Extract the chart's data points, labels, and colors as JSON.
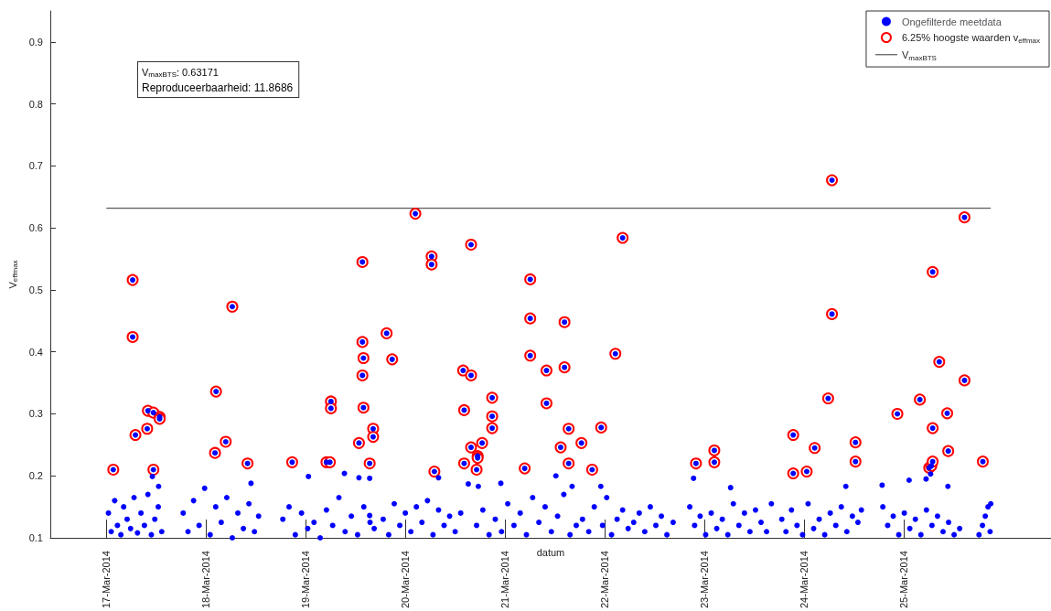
{
  "chart_data": {
    "type": "scatter",
    "xlabel": "datum",
    "ylabel": "V$_{effmax}$",
    "xlim": [
      "2014-03-16T10:30",
      "2014-03-26T11:30"
    ],
    "xticks": [
      {
        "value": "2014-03-17",
        "label": "17-Mar-2014"
      },
      {
        "value": "2014-03-18",
        "label": "18-Mar-2014"
      },
      {
        "value": "2014-03-19",
        "label": "19-Mar-2014"
      },
      {
        "value": "2014-03-20",
        "label": "20-Mar-2014"
      },
      {
        "value": "2014-03-21",
        "label": "21-Mar-2014"
      },
      {
        "value": "2014-03-22",
        "label": "22-Mar-2014"
      },
      {
        "value": "2014-03-23",
        "label": "23-Mar-2014"
      },
      {
        "value": "2014-03-24",
        "label": "24-Mar-2014"
      },
      {
        "value": "2014-03-25",
        "label": "25-Mar-2014"
      }
    ],
    "ylim": [
      0.1,
      0.95
    ],
    "yticks": [
      0.1,
      0.2,
      0.3,
      0.4,
      0.5,
      0.6,
      0.7,
      0.8,
      0.9
    ],
    "grid": false,
    "legend": "top right",
    "annotations": [
      "V$_{maxBTS}$: 0.63171",
      "Reproduceerbaarheid: 11.8686"
    ],
    "series": [
      {
        "name": "Ongefilterde meetdata",
        "marker": "circle",
        "color": "#0000ff",
        "x": [
          "2014-03-17T00:30",
          "2014-03-17T01:10",
          "2014-03-17T02:00",
          "2014-03-17T02:40",
          "2014-03-17T03:30",
          "2014-03-17T04:10",
          "2014-03-17T05:00",
          "2014-03-17T05:50",
          "2014-03-17T06:40",
          "2014-03-17T07:30",
          "2014-03-17T08:20",
          "2014-03-17T09:10",
          "2014-03-17T10:00",
          "2014-03-17T10:50",
          "2014-03-17T11:40",
          "2014-03-17T12:30",
          "2014-03-17T13:20",
          "2014-03-17T18:30",
          "2014-03-17T19:40",
          "2014-03-17T21:00",
          "2014-03-17T22:20",
          "2014-03-17T23:40",
          "2014-03-18T01:00",
          "2014-03-18T02:20",
          "2014-03-18T03:40",
          "2014-03-18T05:00",
          "2014-03-18T06:20",
          "2014-03-18T07:40",
          "2014-03-18T09:00",
          "2014-03-18T10:20",
          "2014-03-18T11:40",
          "2014-03-18T12:40",
          "2014-03-18T18:30",
          "2014-03-18T20:00",
          "2014-03-18T21:30",
          "2014-03-18T23:00",
          "2014-03-19T00:30",
          "2014-03-19T02:00",
          "2014-03-19T03:30",
          "2014-03-19T05:00",
          "2014-03-19T06:30",
          "2014-03-19T08:00",
          "2014-03-19T09:30",
          "2014-03-19T11:00",
          "2014-03-19T12:30",
          "2014-03-19T14:00",
          "2014-03-19T15:30",
          "2014-03-19T16:30",
          "2014-03-19T18:40",
          "2014-03-19T20:00",
          "2014-03-19T21:20",
          "2014-03-19T22:40",
          "2014-03-20T00:00",
          "2014-03-20T01:20",
          "2014-03-20T02:40",
          "2014-03-20T04:00",
          "2014-03-20T05:20",
          "2014-03-20T06:40",
          "2014-03-20T08:00",
          "2014-03-20T09:20",
          "2014-03-20T10:40",
          "2014-03-20T12:00",
          "2014-03-20T13:20",
          "2014-03-20T17:10",
          "2014-03-20T18:40",
          "2014-03-20T20:10",
          "2014-03-20T21:40",
          "2014-03-20T23:10",
          "2014-03-21T00:40",
          "2014-03-21T02:10",
          "2014-03-21T03:40",
          "2014-03-21T05:10",
          "2014-03-21T06:40",
          "2014-03-21T08:10",
          "2014-03-21T09:40",
          "2014-03-21T11:10",
          "2014-03-21T12:40",
          "2014-03-21T14:10",
          "2014-03-21T15:40",
          "2014-03-21T17:10",
          "2014-03-21T18:40",
          "2014-03-21T20:10",
          "2014-03-21T21:30",
          "2014-03-21T23:30",
          "2014-03-22T00:30",
          "2014-03-22T01:40",
          "2014-03-22T03:00",
          "2014-03-22T04:20",
          "2014-03-22T05:40",
          "2014-03-22T07:00",
          "2014-03-22T08:20",
          "2014-03-22T09:40",
          "2014-03-22T11:00",
          "2014-03-22T12:20",
          "2014-03-22T13:40",
          "2014-03-22T15:00",
          "2014-03-22T16:30",
          "2014-03-22T20:30",
          "2014-03-22T21:40",
          "2014-03-22T23:00",
          "2014-03-23T00:20",
          "2014-03-23T01:40",
          "2014-03-23T03:00",
          "2014-03-23T04:20",
          "2014-03-23T05:40",
          "2014-03-23T07:00",
          "2014-03-23T08:20",
          "2014-03-23T09:40",
          "2014-03-23T11:00",
          "2014-03-23T12:20",
          "2014-03-23T13:40",
          "2014-03-23T15:00",
          "2014-03-23T16:10",
          "2014-03-23T18:40",
          "2014-03-23T19:40",
          "2014-03-23T21:00",
          "2014-03-23T22:20",
          "2014-03-23T23:40",
          "2014-03-24T01:00",
          "2014-03-24T02:20",
          "2014-03-24T03:40",
          "2014-03-24T05:00",
          "2014-03-24T06:20",
          "2014-03-24T07:40",
          "2014-03-24T09:00",
          "2014-03-24T10:20",
          "2014-03-24T11:40",
          "2014-03-24T13:00",
          "2014-03-24T13:50",
          "2014-03-24T19:00",
          "2014-03-24T20:10",
          "2014-03-24T21:30",
          "2014-03-24T22:50",
          "2014-03-25T00:10",
          "2014-03-25T01:30",
          "2014-03-25T02:50",
          "2014-03-25T04:10",
          "2014-03-25T05:30",
          "2014-03-25T06:50",
          "2014-03-25T08:10",
          "2014-03-25T09:30",
          "2014-03-25T10:50",
          "2014-03-25T12:10",
          "2014-03-25T13:30",
          "2014-03-25T18:10",
          "2014-03-25T19:00",
          "2014-03-25T19:40",
          "2014-03-25T20:20",
          "2014-03-25T21:00",
          "2014-03-25T20:50",
          "2014-03-17T11:05",
          "2014-03-17T12:35",
          "2014-03-18T10:50",
          "2014-03-19T00:40",
          "2014-03-19T09:20",
          "2014-03-19T12:50",
          "2014-03-19T15:25",
          "2014-03-19T15:25",
          "2014-03-20T08:00",
          "2014-03-20T15:10",
          "2014-03-20T17:35",
          "2014-03-20T23:00",
          "2014-03-21T12:15",
          "2014-03-21T16:10",
          "2014-03-21T23:05",
          "2014-03-22T21:25",
          "2014-03-23T06:20",
          "2014-03-24T10:05",
          "2014-03-24T18:50",
          "2014-03-25T01:20",
          "2014-03-25T05:25",
          "2014-03-25T06:30",
          "2014-03-25T10:40",
          "2014-03-17T01:40",
          "2014-03-17T06:20",
          "2014-03-17T06:20",
          "2014-03-17T07:00",
          "2014-03-17T10:00",
          "2014-03-17T09:50",
          "2014-03-17T11:20",
          "2014-03-17T12:50",
          "2014-03-17T12:50",
          "2014-03-17T11:20",
          "2014-03-18T02:10",
          "2014-03-18T02:25",
          "2014-03-18T04:45",
          "2014-03-18T06:20",
          "2014-03-18T10:00",
          "2014-03-18T20:45",
          "2014-03-19T05:00",
          "2014-03-19T05:50",
          "2014-03-19T06:05",
          "2014-03-19T06:05",
          "2014-03-19T12:50",
          "2014-03-19T13:40",
          "2014-03-19T13:40",
          "2014-03-19T13:55",
          "2014-03-19T13:40",
          "2014-03-19T13:55",
          "2014-03-19T15:25",
          "2014-03-19T16:15",
          "2014-03-19T16:15",
          "2014-03-19T19:30",
          "2014-03-19T20:50",
          "2014-03-20T02:25",
          "2014-03-20T06:20",
          "2014-03-20T06:20",
          "2014-03-20T07:00",
          "2014-03-20T13:55",
          "2014-03-20T14:10",
          "2014-03-20T14:10",
          "2014-03-20T15:50",
          "2014-03-20T15:50",
          "2014-03-20T15:50",
          "2014-03-20T17:25",
          "2014-03-20T17:25",
          "2014-03-20T17:10",
          "2014-03-20T18:30",
          "2014-03-20T20:55",
          "2014-03-20T20:55",
          "2014-03-20T20:55",
          "2014-03-21T04:45",
          "2014-03-21T06:05",
          "2014-03-21T06:05",
          "2014-03-21T06:05",
          "2014-03-21T10:00",
          "2014-03-21T10:00",
          "2014-03-21T13:25",
          "2014-03-21T14:20",
          "2014-03-21T14:20",
          "2014-03-21T15:20",
          "2014-03-21T15:20",
          "2014-03-21T18:25",
          "2014-03-21T21:00",
          "2014-03-21T23:10",
          "2014-03-22T02:35",
          "2014-03-22T04:20",
          "2014-03-22T22:00",
          "2014-03-23T02:25",
          "2014-03-23T02:25",
          "2014-03-23T21:25",
          "2014-03-23T21:25",
          "2014-03-24T00:40",
          "2014-03-24T02:35",
          "2014-03-24T05:50",
          "2014-03-24T06:45",
          "2014-03-24T06:45",
          "2014-03-24T12:25",
          "2014-03-24T12:25",
          "2014-03-24T22:30",
          "2014-03-25T03:55",
          "2014-03-25T06:10",
          "2014-03-25T06:40",
          "2014-03-25T07:00",
          "2014-03-25T07:00",
          "2014-03-25T07:00",
          "2014-03-25T08:35",
          "2014-03-25T10:30",
          "2014-03-25T10:45",
          "2014-03-25T14:40",
          "2014-03-25T14:40",
          "2014-03-25T19:05"
        ],
        "values": [
          0.14,
          0.11,
          0.16,
          0.12,
          0.105,
          0.15,
          0.13,
          0.115,
          0.165,
          0.108,
          0.14,
          0.12,
          0.17,
          0.105,
          0.13,
          0.15,
          0.11,
          0.14,
          0.11,
          0.16,
          0.12,
          0.18,
          0.105,
          0.15,
          0.125,
          0.165,
          0.1,
          0.14,
          0.115,
          0.155,
          0.11,
          0.135,
          0.13,
          0.15,
          0.105,
          0.14,
          0.115,
          0.125,
          0.1,
          0.145,
          0.12,
          0.165,
          0.11,
          0.135,
          0.105,
          0.15,
          0.125,
          0.115,
          0.13,
          0.105,
          0.155,
          0.12,
          0.14,
          0.11,
          0.15,
          0.125,
          0.16,
          0.105,
          0.145,
          0.12,
          0.135,
          0.11,
          0.14,
          0.12,
          0.145,
          0.105,
          0.13,
          0.11,
          0.155,
          0.12,
          0.14,
          0.105,
          0.165,
          0.125,
          0.15,
          0.11,
          0.135,
          0.17,
          0.105,
          0.12,
          0.13,
          0.11,
          0.15,
          0.12,
          0.165,
          0.105,
          0.13,
          0.145,
          0.115,
          0.125,
          0.14,
          0.11,
          0.15,
          0.12,
          0.135,
          0.105,
          0.125,
          0.15,
          0.12,
          0.135,
          0.105,
          0.14,
          0.115,
          0.13,
          0.105,
          0.155,
          0.12,
          0.14,
          0.11,
          0.145,
          0.125,
          0.11,
          0.155,
          0.13,
          0.11,
          0.145,
          0.12,
          0.105,
          0.155,
          0.115,
          0.13,
          0.105,
          0.14,
          0.12,
          0.15,
          0.11,
          0.135,
          0.125,
          0.145,
          0.15,
          0.12,
          0.135,
          0.105,
          0.14,
          0.115,
          0.13,
          0.105,
          0.145,
          0.12,
          0.135,
          0.11,
          0.125,
          0.105,
          0.115,
          0.105,
          0.12,
          0.135,
          0.15,
          0.155,
          0.11,
          0.199,
          0.183,
          0.188,
          0.199,
          0.204,
          0.197,
          0.196,
          0.136,
          0.197,
          0.187,
          0.183,
          0.188,
          0.2,
          0.183,
          0.183,
          0.196,
          0.181,
          0.183,
          0.185,
          0.193,
          0.195,
          0.203,
          0.183,
          0.21,
          0.516,
          0.424,
          0.266,
          0.305,
          0.276,
          0.302,
          0.295,
          0.292,
          0.21,
          0.237,
          0.336,
          0.255,
          0.473,
          0.22,
          0.222,
          0.222,
          0.222,
          0.32,
          0.309,
          0.253,
          0.545,
          0.416,
          0.39,
          0.362,
          0.31,
          0.22,
          0.276,
          0.263,
          0.43,
          0.388,
          0.623,
          0.554,
          0.541,
          0.207,
          0.37,
          0.306,
          0.22,
          0.573,
          0.362,
          0.246,
          0.232,
          0.229,
          0.21,
          0.253,
          0.326,
          0.296,
          0.277,
          0.212,
          0.517,
          0.454,
          0.394,
          0.37,
          0.317,
          0.246,
          0.448,
          0.375,
          0.276,
          0.22,
          0.253,
          0.21,
          0.278,
          0.397,
          0.584,
          0.22,
          0.241,
          0.222,
          0.266,
          0.204,
          0.207,
          0.245,
          0.325,
          0.461,
          0.677,
          0.254,
          0.223,
          0.3,
          0.323,
          0.213,
          0.216,
          0.223,
          0.277,
          0.529,
          0.384,
          0.301,
          0.24,
          0.617,
          0.354,
          0.223
        ]
      },
      {
        "name": "6.25% hoogste waarden v$_{effmax}$",
        "marker": "circle",
        "color": "#ff0000",
        "x": [
          "2014-03-17T01:40",
          "2014-03-17T06:20",
          "2014-03-17T06:20",
          "2014-03-17T07:00",
          "2014-03-17T10:00",
          "2014-03-17T09:50",
          "2014-03-17T11:20",
          "2014-03-17T12:50",
          "2014-03-17T12:50",
          "2014-03-17T11:20",
          "2014-03-18T02:10",
          "2014-03-18T02:25",
          "2014-03-18T04:45",
          "2014-03-18T06:20",
          "2014-03-18T10:00",
          "2014-03-18T20:45",
          "2014-03-19T05:00",
          "2014-03-19T05:50",
          "2014-03-19T06:05",
          "2014-03-19T06:05",
          "2014-03-19T12:50",
          "2014-03-19T13:40",
          "2014-03-19T13:40",
          "2014-03-19T13:55",
          "2014-03-19T13:40",
          "2014-03-19T13:55",
          "2014-03-19T15:25",
          "2014-03-19T16:15",
          "2014-03-19T16:15",
          "2014-03-19T19:30",
          "2014-03-19T20:50",
          "2014-03-20T02:25",
          "2014-03-20T06:20",
          "2014-03-20T06:20",
          "2014-03-20T07:00",
          "2014-03-20T13:55",
          "2014-03-20T14:10",
          "2014-03-20T14:10",
          "2014-03-20T15:50",
          "2014-03-20T15:50",
          "2014-03-20T15:50",
          "2014-03-20T17:25",
          "2014-03-20T17:25",
          "2014-03-20T17:10",
          "2014-03-20T18:30",
          "2014-03-20T20:55",
          "2014-03-20T20:55",
          "2014-03-20T20:55",
          "2014-03-21T04:45",
          "2014-03-21T06:05",
          "2014-03-21T06:05",
          "2014-03-21T06:05",
          "2014-03-21T10:00",
          "2014-03-21T10:00",
          "2014-03-21T13:25",
          "2014-03-21T14:20",
          "2014-03-21T14:20",
          "2014-03-21T15:20",
          "2014-03-21T15:20",
          "2014-03-21T18:25",
          "2014-03-21T21:00",
          "2014-03-21T23:10",
          "2014-03-22T02:35",
          "2014-03-22T04:20",
          "2014-03-22T22:00",
          "2014-03-23T02:25",
          "2014-03-23T02:25",
          "2014-03-23T21:25",
          "2014-03-23T21:25",
          "2014-03-24T00:40",
          "2014-03-24T02:35",
          "2014-03-24T05:50",
          "2014-03-24T06:45",
          "2014-03-24T06:45",
          "2014-03-24T12:25",
          "2014-03-24T12:25",
          "2014-03-24T22:30",
          "2014-03-25T03:55",
          "2014-03-25T06:10",
          "2014-03-25T06:40",
          "2014-03-25T07:00",
          "2014-03-25T07:00",
          "2014-03-25T07:00",
          "2014-03-25T08:35",
          "2014-03-25T10:30",
          "2014-03-25T10:45",
          "2014-03-25T14:40",
          "2014-03-25T14:40",
          "2014-03-25T19:05"
        ],
        "values": [
          0.21,
          0.516,
          0.424,
          0.266,
          0.305,
          0.276,
          0.302,
          0.295,
          0.292,
          0.21,
          0.237,
          0.336,
          0.255,
          0.473,
          0.22,
          0.222,
          0.222,
          0.222,
          0.32,
          0.309,
          0.253,
          0.545,
          0.416,
          0.39,
          0.362,
          0.31,
          0.22,
          0.276,
          0.263,
          0.43,
          0.388,
          0.623,
          0.554,
          0.541,
          0.207,
          0.37,
          0.306,
          0.22,
          0.573,
          0.362,
          0.246,
          0.232,
          0.229,
          0.21,
          0.253,
          0.326,
          0.296,
          0.277,
          0.212,
          0.517,
          0.454,
          0.394,
          0.37,
          0.317,
          0.246,
          0.448,
          0.375,
          0.276,
          0.22,
          0.253,
          0.21,
          0.278,
          0.397,
          0.584,
          0.22,
          0.241,
          0.222,
          0.266,
          0.204,
          0.207,
          0.245,
          0.325,
          0.461,
          0.677,
          0.254,
          0.223,
          0.3,
          0.323,
          0.213,
          0.216,
          0.223,
          0.277,
          0.529,
          0.384,
          0.301,
          0.24,
          0.617,
          0.354,
          0.223
        ]
      },
      {
        "name": "V$_{maxBTS}$",
        "type": "line",
        "marker": "none",
        "line_style": "solid",
        "color": "#333333",
        "x": [
          "2014-03-17T00:00",
          "2014-03-25T21:00"
        ],
        "values": [
          0.63171,
          0.63171
        ]
      }
    ]
  }
}
